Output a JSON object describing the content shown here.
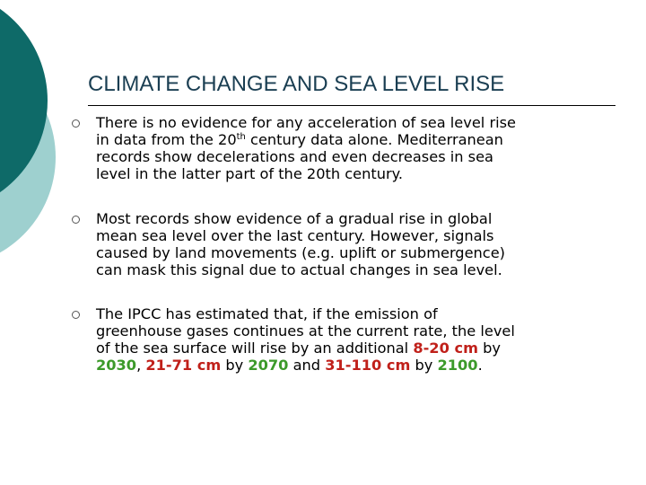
{
  "slide": {
    "title": "CLIMATE CHANGE AND SEA LEVEL RISE",
    "colors": {
      "dark_teal": "#0e6a68",
      "light_teal": "#9ed0cf",
      "title": "#1a3e52",
      "highlight_red": "#c0201a",
      "highlight_green": "#3c9a2a"
    },
    "bullet_icon": "hollow-circle-icon"
  },
  "bullets": [
    {
      "lines": [
        [
          "There is no evidence for any acceleration of sea level rise"
        ],
        [
          "in data from the 20",
          "th",
          " century data alone. Mediterranean"
        ],
        [
          "records show decelerations and even decreases in sea"
        ],
        [
          "level in the latter part of the 20th century."
        ]
      ]
    },
    {
      "lines": [
        [
          "Most records show evidence of a gradual rise in global"
        ],
        [
          "mean sea level over the last century. However, signals"
        ],
        [
          "caused by land movements (e.g. uplift or submergence)"
        ],
        [
          "can mask this signal due to actual changes in sea level."
        ]
      ]
    },
    {
      "lines": [
        [
          "The IPCC has estimated that, if the emission of"
        ],
        [
          "greenhouse gases continues at the current rate, the level"
        ],
        [
          "of the sea surface will rise by an additional ",
          "8-20 cm",
          " by"
        ],
        [
          "2030",
          ", ",
          "21-71 cm",
          " by ",
          "2070",
          " and ",
          "31-110 cm",
          " by ",
          "2100",
          "."
        ]
      ]
    }
  ]
}
